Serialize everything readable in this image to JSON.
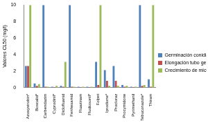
{
  "chart_data": {
    "type": "bar",
    "y_label": "Valores CL50 (mg/l)",
    "categories": [
      "Azoxystrobin*",
      "Boscalid*",
      "Carbendazim",
      "Cyprodinil*",
      "Diclofluanid",
      "Fenhexamid",
      "Fluazinam",
      "Fludioxonil*",
      "Folpet",
      "Iprodione*",
      "Procloraz",
      "Procymidone",
      "Pyrimethanil",
      "Tebuconazole*",
      "Thiram"
    ],
    "series": [
      {
        "name": "Germinación conidia",
        "color": "#4f81bd",
        "values": [
          2.6,
          0.5,
          10,
          0.1,
          0.2,
          10,
          0.1,
          0.1,
          3.1,
          2.1,
          2.6,
          0.3,
          0.1,
          10,
          1.0
        ]
      },
      {
        "name": "Elongación tubo germinativo",
        "color": "#c0504d",
        "values": [
          2.6,
          0.2,
          0.1,
          0.05,
          0.1,
          0.1,
          0.05,
          0.05,
          0.3,
          0.8,
          0.8,
          0.1,
          0.05,
          0.2,
          0.1
        ]
      },
      {
        "name": "Crecimiento de micelio",
        "color": "#9bbb59",
        "values": [
          10,
          0.4,
          0.1,
          0.2,
          3.1,
          0.1,
          0.1,
          0.1,
          10,
          0.2,
          0.2,
          0.2,
          0.1,
          0.3,
          10
        ]
      }
    ],
    "ylim": [
      0,
      10
    ],
    "yticks": [
      0,
      2,
      4,
      6,
      8,
      10
    ],
    "grid": false,
    "legend": "right"
  }
}
